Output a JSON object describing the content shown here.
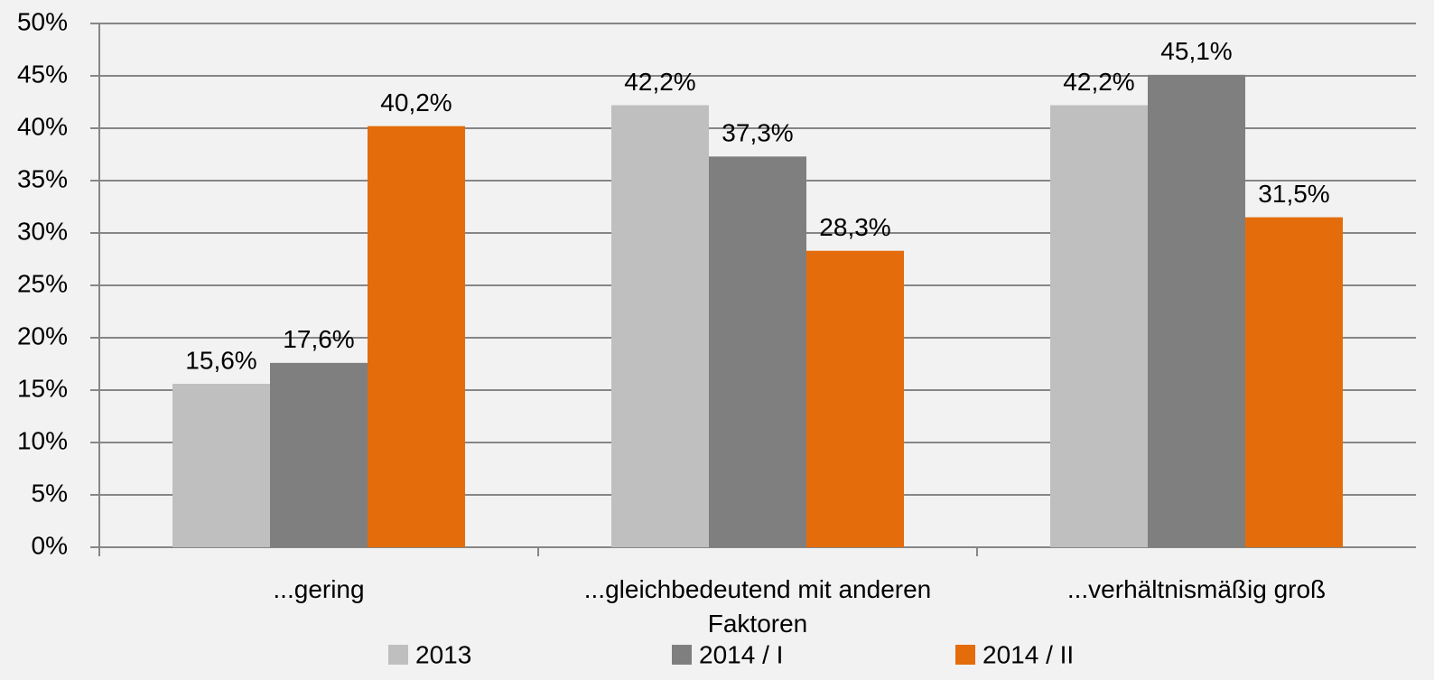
{
  "chart_data": {
    "type": "bar",
    "categories": [
      "...gering",
      "...gleichbedeutend mit anderen Faktoren",
      "...verhältnismäßig groß"
    ],
    "series": [
      {
        "name": "2013",
        "color": "#bfbfbf",
        "values": [
          15.6,
          42.2,
          42.2
        ],
        "value_labels": [
          "15,6%",
          "42,2%",
          "42,2%"
        ]
      },
      {
        "name": "2014 / I",
        "color": "#7f7f7f",
        "values": [
          17.6,
          37.3,
          45.1
        ],
        "value_labels": [
          "17,6%",
          "37,3%",
          "45,1%"
        ]
      },
      {
        "name": "2014 / II",
        "color": "#e46c0a",
        "values": [
          40.2,
          28.3,
          31.5
        ],
        "value_labels": [
          "40,2%",
          "28,3%",
          "31,5%"
        ]
      }
    ],
    "ylim": [
      0,
      50
    ],
    "yticks": [
      {
        "value": 0,
        "label": "0%"
      },
      {
        "value": 5,
        "label": "5%"
      },
      {
        "value": 10,
        "label": "10%"
      },
      {
        "value": 15,
        "label": "15%"
      },
      {
        "value": 20,
        "label": "20%"
      },
      {
        "value": 25,
        "label": "25%"
      },
      {
        "value": 30,
        "label": "30%"
      },
      {
        "value": 35,
        "label": "35%"
      },
      {
        "value": 40,
        "label": "40%"
      },
      {
        "value": 45,
        "label": "45%"
      },
      {
        "value": 50,
        "label": "50%"
      }
    ],
    "grid": true,
    "legend": "bottom"
  }
}
